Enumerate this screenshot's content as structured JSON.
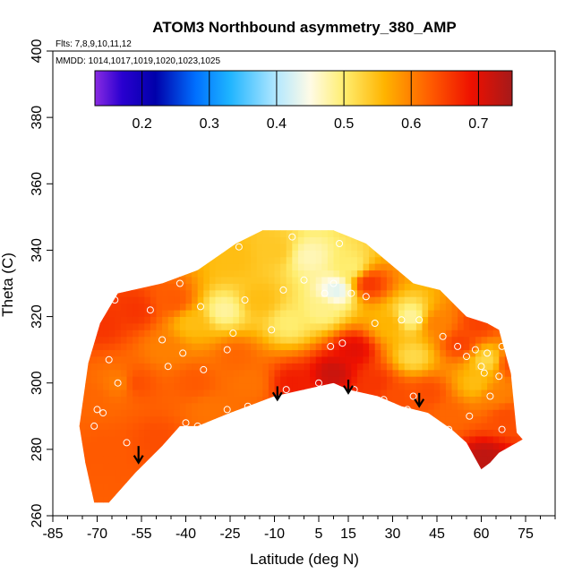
{
  "chart_data": {
    "type": "heatmap",
    "title": "ATOM3 Northbound asymmetry_380_AMP",
    "flights_label": "Flts: 7,8,9,10,11,12",
    "dates_label": "MMDD: 1014,1017,1019,1020,1023,1025",
    "xlabel": "Latitude (deg N)",
    "ylabel": "Theta (C)",
    "xlim": [
      -85,
      85
    ],
    "ylim": [
      260,
      400
    ],
    "x_ticks": [
      -85,
      -70,
      -55,
      -40,
      -25,
      -10,
      5,
      15,
      30,
      45,
      60,
      75
    ],
    "x_tick_labels": [
      "-85",
      "-70",
      "-55",
      "-40",
      "-25",
      "-10",
      "5",
      "15",
      "30",
      "45",
      "60",
      "75"
    ],
    "y_ticks": [
      260,
      280,
      300,
      320,
      340,
      360,
      380,
      400
    ],
    "y_tick_labels": [
      "260",
      "280",
      "300",
      "320",
      "340",
      "360",
      "380",
      "400"
    ],
    "colorbar": {
      "range": [
        0.13,
        0.75
      ],
      "ticks": [
        0.2,
        0.3,
        0.4,
        0.5,
        0.6,
        0.7
      ],
      "tick_labels": [
        "0.2",
        "0.3",
        "0.4",
        "0.5",
        "0.6",
        "0.7"
      ],
      "stops": [
        {
          "v": 0.13,
          "c": "#8a2be2"
        },
        {
          "v": 0.17,
          "c": "#2a00d0"
        },
        {
          "v": 0.22,
          "c": "#0000aa"
        },
        {
          "v": 0.28,
          "c": "#0070ff"
        },
        {
          "v": 0.33,
          "c": "#1eb4ff"
        },
        {
          "v": 0.4,
          "c": "#b4e8ff"
        },
        {
          "v": 0.45,
          "c": "#fffbe6"
        },
        {
          "v": 0.5,
          "c": "#ffee70"
        },
        {
          "v": 0.56,
          "c": "#ffb400"
        },
        {
          "v": 0.63,
          "c": "#ff5a00"
        },
        {
          "v": 0.69,
          "c": "#ee1000"
        },
        {
          "v": 0.75,
          "c": "#a51a1a"
        }
      ]
    },
    "domain_boundary": {
      "upper": [
        [
          -73,
          306
        ],
        [
          -69,
          318
        ],
        [
          -63,
          327
        ],
        [
          -48,
          330
        ],
        [
          -36,
          334
        ],
        [
          -23,
          342
        ],
        [
          -14,
          346
        ],
        [
          10,
          346
        ],
        [
          21,
          342
        ],
        [
          37,
          330
        ],
        [
          46,
          328
        ],
        [
          55,
          320
        ],
        [
          62,
          318
        ],
        [
          66,
          316
        ],
        [
          70,
          303
        ],
        [
          72,
          285
        ],
        [
          74,
          283
        ]
      ],
      "lower": [
        [
          -76,
          287
        ],
        [
          -74,
          276
        ],
        [
          -71,
          264
        ],
        [
          -66,
          264
        ],
        [
          -57,
          273
        ],
        [
          -48,
          281
        ],
        [
          -42,
          287
        ],
        [
          -36,
          287
        ],
        [
          -25,
          291
        ],
        [
          -16,
          294
        ],
        [
          -10,
          296
        ],
        [
          10,
          300
        ],
        [
          15,
          298
        ],
        [
          25,
          296
        ],
        [
          33,
          293
        ],
        [
          42,
          291
        ],
        [
          50,
          286
        ],
        [
          55,
          282
        ],
        [
          60,
          274
        ],
        [
          63,
          276
        ],
        [
          66,
          279
        ],
        [
          70,
          281
        ],
        [
          74,
          283
        ]
      ]
    },
    "field_points": [
      {
        "lat": -72,
        "theta": 295,
        "value": 0.62
      },
      {
        "lat": -67,
        "theta": 280,
        "value": 0.63
      },
      {
        "lat": -68,
        "theta": 318,
        "value": 0.66
      },
      {
        "lat": -62,
        "theta": 300,
        "value": 0.6
      },
      {
        "lat": -57,
        "theta": 322,
        "value": 0.66
      },
      {
        "lat": -57,
        "theta": 300,
        "value": 0.64
      },
      {
        "lat": -50,
        "theta": 283,
        "value": 0.64
      },
      {
        "lat": -47,
        "theta": 310,
        "value": 0.6
      },
      {
        "lat": -44,
        "theta": 325,
        "value": 0.63
      },
      {
        "lat": -38,
        "theta": 318,
        "value": 0.55
      },
      {
        "lat": -37,
        "theta": 300,
        "value": 0.63
      },
      {
        "lat": -32,
        "theta": 292,
        "value": 0.61
      },
      {
        "lat": -27,
        "theta": 322,
        "value": 0.48
      },
      {
        "lat": -23,
        "theta": 308,
        "value": 0.62
      },
      {
        "lat": -24,
        "theta": 338,
        "value": 0.55
      },
      {
        "lat": -18,
        "theta": 300,
        "value": 0.61
      },
      {
        "lat": -15,
        "theta": 325,
        "value": 0.55
      },
      {
        "lat": -10,
        "theta": 340,
        "value": 0.54
      },
      {
        "lat": -5,
        "theta": 318,
        "value": 0.5
      },
      {
        "lat": -4,
        "theta": 300,
        "value": 0.68
      },
      {
        "lat": 2,
        "theta": 338,
        "value": 0.47
      },
      {
        "lat": 6,
        "theta": 322,
        "value": 0.49
      },
      {
        "lat": 10,
        "theta": 303,
        "value": 0.72
      },
      {
        "lat": 11,
        "theta": 328,
        "value": 0.43
      },
      {
        "lat": 16,
        "theta": 335,
        "value": 0.5
      },
      {
        "lat": 17,
        "theta": 310,
        "value": 0.7
      },
      {
        "lat": 22,
        "theta": 330,
        "value": 0.66
      },
      {
        "lat": 24,
        "theta": 300,
        "value": 0.66
      },
      {
        "lat": 29,
        "theta": 318,
        "value": 0.56
      },
      {
        "lat": 31,
        "theta": 296,
        "value": 0.64
      },
      {
        "lat": 36,
        "theta": 320,
        "value": 0.48
      },
      {
        "lat": 37,
        "theta": 308,
        "value": 0.52
      },
      {
        "lat": 42,
        "theta": 297,
        "value": 0.64
      },
      {
        "lat": 45,
        "theta": 318,
        "value": 0.6
      },
      {
        "lat": 49,
        "theta": 290,
        "value": 0.62
      },
      {
        "lat": 53,
        "theta": 312,
        "value": 0.65
      },
      {
        "lat": 58,
        "theta": 300,
        "value": 0.55
      },
      {
        "lat": 59,
        "theta": 318,
        "value": 0.65
      },
      {
        "lat": 62,
        "theta": 307,
        "value": 0.52
      },
      {
        "lat": 65,
        "theta": 296,
        "value": 0.6
      },
      {
        "lat": 68,
        "theta": 290,
        "value": 0.64
      },
      {
        "lat": 61,
        "theta": 277,
        "value": 0.73
      },
      {
        "lat": 70,
        "theta": 306,
        "value": 0.64
      }
    ],
    "sample_points": [
      [
        -71,
        287
      ],
      [
        -70,
        292
      ],
      [
        -68,
        291
      ],
      [
        -66,
        307
      ],
      [
        -64,
        325
      ],
      [
        -63,
        300
      ],
      [
        -60,
        282
      ],
      [
        -52,
        322
      ],
      [
        -48,
        313
      ],
      [
        -46,
        305
      ],
      [
        -42,
        330
      ],
      [
        -41,
        309
      ],
      [
        -40,
        288
      ],
      [
        -36,
        287
      ],
      [
        -35,
        323
      ],
      [
        -34,
        304
      ],
      [
        -26,
        310
      ],
      [
        -26,
        292
      ],
      [
        -24,
        315
      ],
      [
        -22,
        341
      ],
      [
        -20,
        325
      ],
      [
        -19,
        293
      ],
      [
        -11,
        316
      ],
      [
        -7,
        328
      ],
      [
        -6,
        298
      ],
      [
        -4,
        344
      ],
      [
        0,
        331
      ],
      [
        5,
        300
      ],
      [
        7,
        327
      ],
      [
        9,
        311
      ],
      [
        10,
        330
      ],
      [
        12,
        342
      ],
      [
        13,
        312
      ],
      [
        16,
        327
      ],
      [
        17,
        298
      ],
      [
        21,
        326
      ],
      [
        24,
        318
      ],
      [
        27,
        295
      ],
      [
        30,
        293
      ],
      [
        33,
        319
      ],
      [
        35,
        292
      ],
      [
        37,
        296
      ],
      [
        39,
        319
      ],
      [
        47,
        314
      ],
      [
        49,
        286
      ],
      [
        52,
        311
      ],
      [
        55,
        308
      ],
      [
        56,
        290
      ],
      [
        57,
        321
      ],
      [
        58,
        310
      ],
      [
        60,
        305
      ],
      [
        61,
        303
      ],
      [
        62,
        309
      ],
      [
        63,
        296
      ],
      [
        66,
        302
      ],
      [
        67,
        311
      ],
      [
        67,
        286
      ]
    ],
    "arrows": [
      {
        "lat": -56,
        "theta_top": 281,
        "theta_tip": 276
      },
      {
        "lat": -9,
        "theta_top": 299,
        "theta_tip": 295
      },
      {
        "lat": 15,
        "theta_top": 301,
        "theta_tip": 297
      },
      {
        "lat": 39,
        "theta_top": 297,
        "theta_tip": 293
      }
    ]
  }
}
